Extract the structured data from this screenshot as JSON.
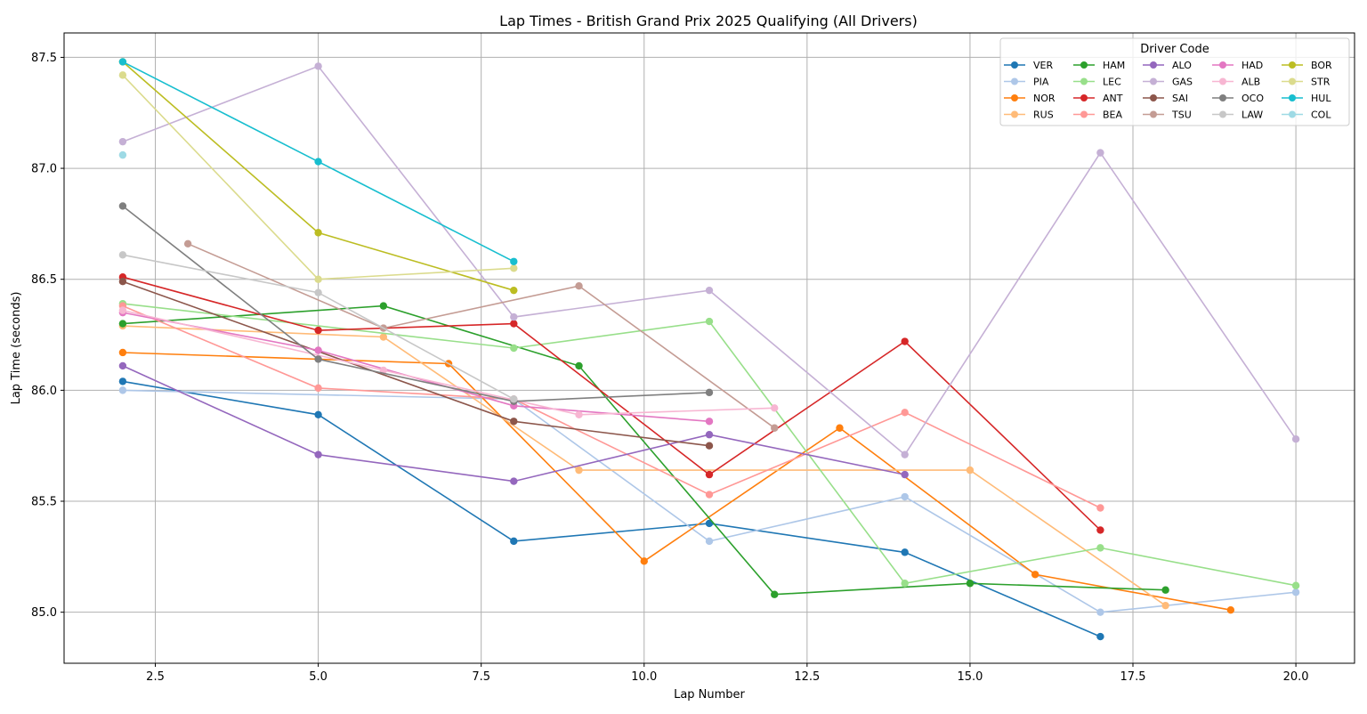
{
  "chart_data": {
    "type": "line",
    "title": "Lap Times - British Grand Prix 2025 Qualifying (All Drivers)",
    "xlabel": "Lap Number",
    "ylabel": "Lap Time (seconds)",
    "xlim": [
      1.1,
      20.9
    ],
    "ylim": [
      84.77,
      87.61
    ],
    "xticks": [
      2.5,
      5.0,
      7.5,
      10.0,
      12.5,
      15.0,
      17.5,
      20.0
    ],
    "xtick_labels": [
      "2.5",
      "5.0",
      "7.5",
      "10.0",
      "12.5",
      "15.0",
      "17.5",
      "20.0"
    ],
    "yticks": [
      85.0,
      85.5,
      86.0,
      86.5,
      87.0,
      87.5
    ],
    "ytick_labels": [
      "85.0",
      "85.5",
      "86.0",
      "86.5",
      "87.0",
      "87.5"
    ],
    "grid": true,
    "legend_title": "Driver Code",
    "legend_placement": "top-right",
    "series": [
      {
        "name": "VER",
        "color": "#1f77b4",
        "x": [
          2,
          5,
          8,
          11,
          14,
          17
        ],
        "y": [
          86.04,
          85.89,
          85.32,
          85.4,
          85.27,
          84.89
        ]
      },
      {
        "name": "PIA",
        "color": "#aec7e8",
        "x": [
          2,
          8,
          11,
          14,
          17,
          20
        ],
        "y": [
          86.0,
          85.96,
          85.32,
          85.52,
          85.0,
          85.09
        ]
      },
      {
        "name": "NOR",
        "color": "#ff7f0e",
        "x": [
          2,
          7,
          10,
          13,
          16,
          19
        ],
        "y": [
          86.17,
          86.12,
          85.23,
          85.83,
          85.17,
          85.01
        ]
      },
      {
        "name": "RUS",
        "color": "#ffbb78",
        "x": [
          2,
          6,
          9,
          15,
          18
        ],
        "y": [
          86.29,
          86.24,
          85.64,
          85.64,
          85.03
        ]
      },
      {
        "name": "HAM",
        "color": "#2ca02c",
        "x": [
          2,
          6,
          9,
          12,
          15,
          18
        ],
        "y": [
          86.3,
          86.38,
          86.11,
          85.08,
          85.13,
          85.1
        ]
      },
      {
        "name": "LEC",
        "color": "#98df8a",
        "x": [
          2,
          8,
          11,
          14,
          17,
          20
        ],
        "y": [
          86.39,
          86.19,
          86.31,
          85.13,
          85.29,
          85.12
        ]
      },
      {
        "name": "ANT",
        "color": "#d62728",
        "x": [
          2,
          5,
          8,
          11,
          14,
          17
        ],
        "y": [
          86.51,
          86.27,
          86.3,
          85.62,
          86.22,
          85.37
        ]
      },
      {
        "name": "BEA",
        "color": "#ff9896",
        "x": [
          2,
          5,
          8,
          11,
          14,
          17
        ],
        "y": [
          86.38,
          86.01,
          85.96,
          85.53,
          85.9,
          85.47
        ]
      },
      {
        "name": "ALO",
        "color": "#9467bd",
        "x": [
          2,
          5,
          8,
          11,
          14
        ],
        "y": [
          86.11,
          85.71,
          85.59,
          85.8,
          85.62
        ]
      },
      {
        "name": "GAS",
        "color": "#c5b0d5",
        "x": [
          2,
          5,
          8,
          11,
          14,
          17,
          20
        ],
        "y": [
          87.12,
          87.46,
          86.33,
          86.45,
          85.71,
          87.07,
          85.78
        ]
      },
      {
        "name": "SAI",
        "color": "#8c564b",
        "x": [
          2,
          8,
          11
        ],
        "y": [
          86.49,
          85.86,
          85.75
        ]
      },
      {
        "name": "TSU",
        "color": "#c49c94",
        "x": [
          3,
          6,
          9,
          12
        ],
        "y": [
          86.66,
          86.28,
          86.47,
          85.83
        ]
      },
      {
        "name": "HAD",
        "color": "#e377c2",
        "x": [
          2,
          5,
          8,
          11
        ],
        "y": [
          86.35,
          86.18,
          85.93,
          85.86
        ]
      },
      {
        "name": "ALB",
        "color": "#f7b6d2",
        "x": [
          2,
          6,
          9,
          12
        ],
        "y": [
          86.36,
          86.09,
          85.89,
          85.92
        ]
      },
      {
        "name": "OCO",
        "color": "#7f7f7f",
        "x": [
          2,
          5,
          8,
          11
        ],
        "y": [
          86.83,
          86.14,
          85.95,
          85.99
        ]
      },
      {
        "name": "LAW",
        "color": "#c7c7c7",
        "x": [
          2,
          5,
          8
        ],
        "y": [
          86.61,
          86.44,
          85.96
        ]
      },
      {
        "name": "BOR",
        "color": "#bcbd22",
        "x": [
          2,
          5,
          8
        ],
        "y": [
          87.48,
          86.71,
          86.45
        ]
      },
      {
        "name": "STR",
        "color": "#dbdb8d",
        "x": [
          2,
          5,
          8
        ],
        "y": [
          87.42,
          86.5,
          86.55
        ]
      },
      {
        "name": "HUL",
        "color": "#17becf",
        "x": [
          2,
          5,
          8
        ],
        "y": [
          87.48,
          87.03,
          86.58
        ]
      },
      {
        "name": "COL",
        "color": "#9edae5",
        "x": [
          2
        ],
        "y": [
          87.06
        ]
      }
    ]
  }
}
